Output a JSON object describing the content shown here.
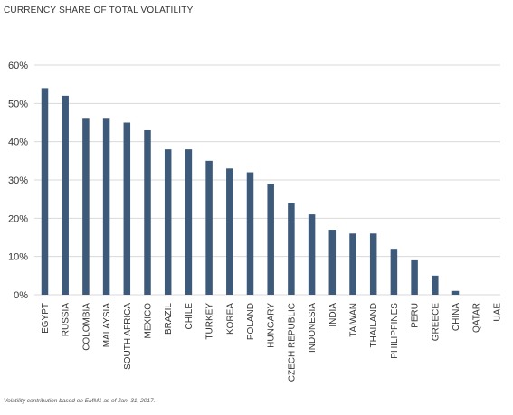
{
  "chart_data": {
    "type": "bar",
    "title": "CURRENCY SHARE OF TOTAL VOLATILITY",
    "xlabel": "",
    "ylabel": "",
    "ylim": [
      0,
      60
    ],
    "y_tick_values": [
      0,
      10,
      20,
      30,
      40,
      50,
      60
    ],
    "y_tick_labels": [
      "0%",
      "10%",
      "20%",
      "30%",
      "40%",
      "50%",
      "60%"
    ],
    "grid": true,
    "legend": "none",
    "bar_color": "#3d5a7a",
    "grid_color": "#d9d9d9",
    "categories": [
      "EGYPT",
      "RUSSIA",
      "COLOMBIA",
      "MALAYSIA",
      "SOUTH AFRICA",
      "MEXICO",
      "BRAZIL",
      "CHILE",
      "TURKEY",
      "KOREA",
      "POLAND",
      "HUNGARY",
      "CZECH REPUBLIC",
      "INDONESIA",
      "INDIA",
      "TAIWAN",
      "THAILAND",
      "PHILIPPINES",
      "PERU",
      "GREECE",
      "CHINA",
      "QATAR",
      "UAE"
    ],
    "values": [
      54,
      52,
      46,
      46,
      45,
      43,
      38,
      38,
      35,
      33,
      32,
      29,
      24,
      21,
      17,
      16,
      16,
      12,
      9,
      5,
      1,
      0,
      0
    ]
  },
  "footnote": "Volatility contribution based on EMM1 as of Jan. 31, 2017."
}
